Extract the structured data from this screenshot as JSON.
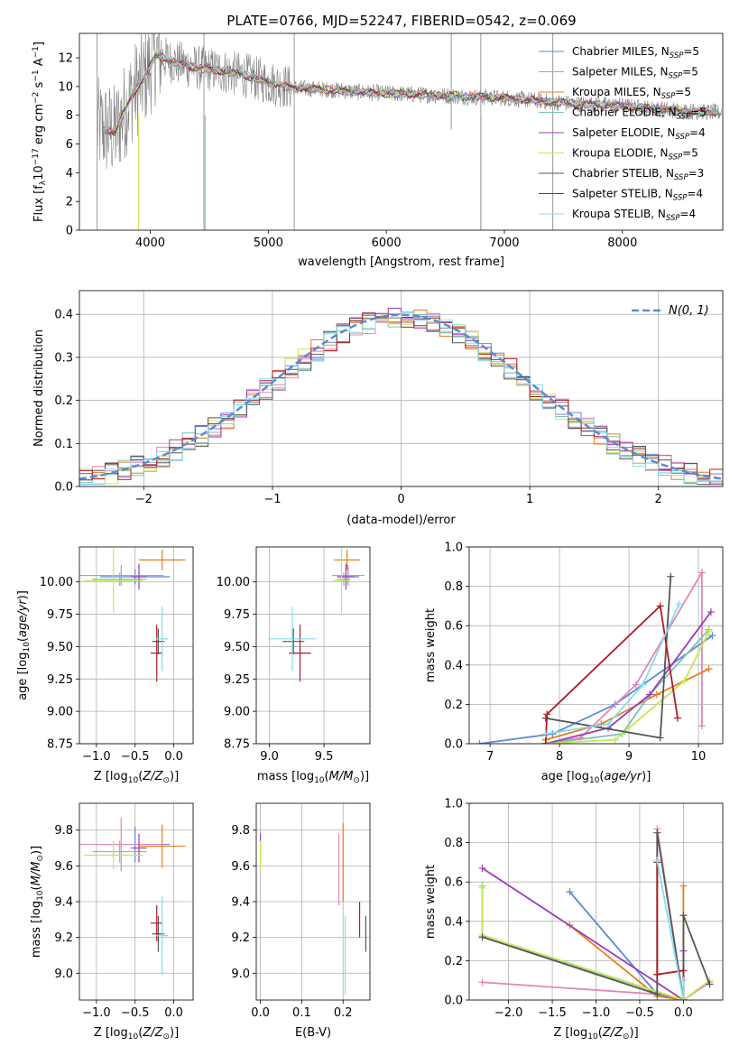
{
  "figure": {
    "title": "PLATE=0766, MJD=52247, FIBERID=0542, z=0.069"
  },
  "colors": {
    "Chabrier MILES": "#5b8ad6",
    "Salpeter MILES": "#e087b7",
    "Kroupa MILES": "#e87c1e",
    "Chabrier ELODIE": "#7dc2b6",
    "Salpeter ELODIE": "#9b3cb7",
    "Kroupa ELODIE": "#c7e553",
    "Chabrier STELIB": "#555555",
    "Salpeter STELIB": "#b01c22",
    "Kroupa STELIB": "#86dcec",
    "data": "#808080",
    "normal": "#5b8ad6"
  },
  "chart_data": [
    {
      "id": "spectrum",
      "type": "line",
      "xlabel": "wavelength [Angstrom, rest frame]",
      "ylabel": "Flux [f_λ10^-17 erg cm^-2 s^-1 A^-1]",
      "xlim": [
        3400,
        8850
      ],
      "ylim": [
        0,
        13.7
      ],
      "xticks": [
        4000,
        5000,
        6000,
        7000,
        8000
      ],
      "yticks": [
        0,
        2,
        4,
        6,
        8,
        10,
        12
      ],
      "continuum": {
        "x": [
          3550,
          3700,
          3850,
          3950,
          4050,
          4200,
          4400,
          4600,
          4800,
          5000,
          5200,
          5500,
          5800,
          6100,
          6400,
          6700,
          7000,
          7300,
          7600,
          7900,
          8200,
          8500,
          8800
        ],
        "y": [
          7.2,
          6.8,
          9.5,
          10.6,
          12.2,
          11.7,
          11.3,
          11.1,
          10.8,
          10.3,
          9.9,
          9.8,
          9.6,
          9.5,
          9.4,
          9.3,
          9.2,
          9.0,
          8.8,
          8.7,
          8.5,
          8.3,
          8.2
        ]
      },
      "legend": [
        "Chabrier MILES, N_SSP=5",
        "Salpeter MILES, N_SSP=5",
        "Kroupa MILES, N_SSP=5",
        "Chabrier ELODIE, N_SSP=5",
        "Salpeter ELODIE, N_SSP=4",
        "Kroupa ELODIE, N_SSP=5",
        "Chabrier STELIB, N_SSP=3",
        "Salpeter STELIB, N_SSP=4",
        "Kroupa STELIB, N_SSP=4"
      ],
      "legend_parts": [
        [
          "Chabrier MILES, N",
          "SSP",
          "=5"
        ],
        [
          "Salpeter MILES, N",
          "SSP",
          "=5"
        ],
        [
          "Kroupa MILES, N",
          "SSP",
          "=5"
        ],
        [
          "Chabrier ELODIE, N",
          "SSP",
          "=5"
        ],
        [
          "Salpeter ELODIE, N",
          "SSP",
          "=4"
        ],
        [
          "Kroupa ELODIE, N",
          "SSP",
          "=5"
        ],
        [
          "Chabrier STELIB, N",
          "SSP",
          "=3"
        ],
        [
          "Salpeter STELIB, N",
          "SSP",
          "=4"
        ],
        [
          "Kroupa STELIB, N",
          "SSP",
          "=4"
        ]
      ],
      "legend_placement": "upper right"
    },
    {
      "id": "residuals",
      "type": "histogram",
      "xlabel": "(data-model)/error",
      "ylabel": "Normed distribution",
      "xlim": [
        -2.5,
        2.5
      ],
      "ylim": [
        0,
        0.455
      ],
      "xticks": [
        -2,
        -1,
        0,
        1,
        2
      ],
      "yticks": [
        0.0,
        0.1,
        0.2,
        0.3,
        0.4
      ],
      "bin_width": 0.1,
      "reference": {
        "label": "N(0, 1)",
        "mean": 0,
        "sigma": 1
      },
      "grid": true
    },
    {
      "id": "age_vs_Z",
      "type": "errorbar",
      "xlabel": "Z [log10(Z/Z_sun)]",
      "ylabel": "age [log10(age/yr)]",
      "xlim": [
        -1.22,
        0.25
      ],
      "ylim": [
        8.75,
        10.27
      ],
      "xticks": [
        -1.0,
        -0.5,
        0.0
      ],
      "yticks": [
        8.75,
        9.0,
        9.25,
        9.5,
        9.75,
        10.0
      ],
      "points": [
        {
          "model": "Chabrier MILES",
          "x": -0.5,
          "xerr": 0.45,
          "y": 10.04,
          "yerr": 0.06
        },
        {
          "model": "Salpeter MILES",
          "x": -0.68,
          "xerr": 0.55,
          "y": 10.05,
          "yerr": 0.08
        },
        {
          "model": "Kroupa MILES",
          "x": -0.15,
          "xerr": 0.3,
          "y": 10.17,
          "yerr": 0.08
        },
        {
          "model": "Chabrier ELODIE",
          "x": -0.7,
          "xerr": 0.35,
          "y": 10.02,
          "yerr": 0.05
        },
        {
          "model": "Salpeter ELODIE",
          "x": -0.45,
          "xerr": 0.1,
          "y": 10.04,
          "yerr": 0.1
        },
        {
          "model": "Kroupa ELODIE",
          "x": -0.78,
          "xerr": 0.38,
          "y": 10.01,
          "yerr": 0.25
        },
        {
          "model": "Chabrier STELIB",
          "x": -0.2,
          "xerr": 0.08,
          "y": 9.54,
          "yerr": 0.1
        },
        {
          "model": "Salpeter STELIB",
          "x": -0.22,
          "xerr": 0.08,
          "y": 9.45,
          "yerr": 0.22
        },
        {
          "model": "Kroupa STELIB",
          "x": -0.15,
          "xerr": 0.08,
          "y": 9.56,
          "yerr": 0.25
        }
      ]
    },
    {
      "id": "age_vs_mass",
      "type": "errorbar",
      "xlabel": "mass [log10(M/M_sun)]",
      "ylabel": "",
      "xlim": [
        8.88,
        9.92
      ],
      "ylim": [
        8.75,
        10.27
      ],
      "xticks": [
        9.0,
        9.5
      ],
      "yticks": [
        8.75,
        9.0,
        9.25,
        9.5,
        9.75,
        10.0
      ],
      "points": [
        {
          "model": "Chabrier MILES",
          "x": 9.72,
          "xerr": 0.1,
          "y": 10.04,
          "yerr": 0.06
        },
        {
          "model": "Salpeter MILES",
          "x": 9.72,
          "xerr": 0.15,
          "y": 10.05,
          "yerr": 0.08
        },
        {
          "model": "Kroupa MILES",
          "x": 9.71,
          "xerr": 0.12,
          "y": 10.17,
          "yerr": 0.08
        },
        {
          "model": "Chabrier ELODIE",
          "x": 9.68,
          "xerr": 0.06,
          "y": 10.02,
          "yerr": 0.05
        },
        {
          "model": "Salpeter ELODIE",
          "x": 9.7,
          "xerr": 0.08,
          "y": 10.04,
          "yerr": 0.1
        },
        {
          "model": "Kroupa ELODIE",
          "x": 9.66,
          "xerr": 0.08,
          "y": 10.01,
          "yerr": 0.25
        },
        {
          "model": "Chabrier STELIB",
          "x": 9.22,
          "xerr": 0.1,
          "y": 9.54,
          "yerr": 0.1
        },
        {
          "model": "Salpeter STELIB",
          "x": 9.28,
          "xerr": 0.1,
          "y": 9.45,
          "yerr": 0.22
        },
        {
          "model": "Kroupa STELIB",
          "x": 9.21,
          "xerr": 0.22,
          "y": 9.56,
          "yerr": 0.25
        }
      ]
    },
    {
      "id": "weight_vs_age",
      "type": "line",
      "xlabel": "age [log10(age/yr)]",
      "ylabel": "mass weight",
      "xlim": [
        6.7,
        10.35
      ],
      "ylim": [
        0,
        1.0
      ],
      "xticks": [
        7,
        8,
        9,
        10
      ],
      "yticks": [
        0.0,
        0.2,
        0.4,
        0.6,
        0.8,
        1.0
      ],
      "grid": true,
      "series": [
        {
          "model": "Chabrier MILES",
          "points": [
            [
              6.85,
              0.0
            ],
            [
              7.9,
              0.05
            ],
            [
              8.8,
              0.2
            ],
            [
              10.2,
              0.55
            ]
          ]
        },
        {
          "model": "Salpeter MILES",
          "points": [
            [
              7.8,
              0.0
            ],
            [
              8.3,
              0.03
            ],
            [
              9.1,
              0.3
            ],
            [
              10.05,
              0.87
            ],
            [
              10.05,
              0.09
            ]
          ]
        },
        {
          "model": "Kroupa MILES",
          "points": [
            [
              7.8,
              0.02
            ],
            [
              8.6,
              0.1
            ],
            [
              9.4,
              0.25
            ],
            [
              10.15,
              0.38
            ]
          ]
        },
        {
          "model": "Chabrier ELODIE",
          "points": [
            [
              7.8,
              0.0
            ],
            [
              8.9,
              0.05
            ],
            [
              9.3,
              0.25
            ],
            [
              10.15,
              0.58
            ]
          ]
        },
        {
          "model": "Salpeter ELODIE",
          "points": [
            [
              7.8,
              0.0
            ],
            [
              8.7,
              0.08
            ],
            [
              9.3,
              0.25
            ],
            [
              10.18,
              0.67
            ]
          ]
        },
        {
          "model": "Kroupa ELODIE",
          "points": [
            [
              7.8,
              0.0
            ],
            [
              8.8,
              0.02
            ],
            [
              9.8,
              0.32
            ],
            [
              10.15,
              0.57
            ]
          ]
        },
        {
          "model": "Chabrier STELIB",
          "points": [
            [
              7.8,
              0.13
            ],
            [
              9.45,
              0.03
            ],
            [
              9.6,
              0.85
            ]
          ]
        },
        {
          "model": "Salpeter STELIB",
          "points": [
            [
              7.8,
              0.0
            ],
            [
              7.82,
              0.15
            ],
            [
              9.45,
              0.7
            ],
            [
              9.7,
              0.13
            ]
          ]
        },
        {
          "model": "Kroupa STELIB",
          "points": [
            [
              7.8,
              0.05
            ],
            [
              8.7,
              0.1
            ],
            [
              9.2,
              0.3
            ],
            [
              9.72,
              0.71
            ]
          ]
        }
      ]
    },
    {
      "id": "mass_vs_Z",
      "type": "errorbar",
      "xlabel": "Z [log10(Z/Z_sun)]",
      "ylabel": "mass [log10(M/M_sun)]",
      "xlim": [
        -1.22,
        0.25
      ],
      "ylim": [
        8.85,
        9.95
      ],
      "xticks": [
        -1.0,
        -0.5,
        0.0
      ],
      "yticks": [
        9.0,
        9.2,
        9.4,
        9.6,
        9.8
      ],
      "points": [
        {
          "model": "Chabrier MILES",
          "x": -0.5,
          "xerr": 0.45,
          "y": 9.72,
          "yerr": 0.1
        },
        {
          "model": "Salpeter MILES",
          "x": -0.68,
          "xerr": 0.55,
          "y": 9.72,
          "yerr": 0.15
        },
        {
          "model": "Kroupa MILES",
          "x": -0.15,
          "xerr": 0.3,
          "y": 9.71,
          "yerr": 0.12
        },
        {
          "model": "Chabrier ELODIE",
          "x": -0.7,
          "xerr": 0.35,
          "y": 9.68,
          "yerr": 0.06
        },
        {
          "model": "Salpeter ELODIE",
          "x": -0.45,
          "xerr": 0.1,
          "y": 9.7,
          "yerr": 0.08
        },
        {
          "model": "Kroupa ELODIE",
          "x": -0.78,
          "xerr": 0.38,
          "y": 9.66,
          "yerr": 0.08
        },
        {
          "model": "Chabrier STELIB",
          "x": -0.2,
          "xerr": 0.08,
          "y": 9.22,
          "yerr": 0.1
        },
        {
          "model": "Salpeter STELIB",
          "x": -0.22,
          "xerr": 0.08,
          "y": 9.28,
          "yerr": 0.1
        },
        {
          "model": "Kroupa STELIB",
          "x": -0.15,
          "xerr": 0.08,
          "y": 9.21,
          "yerr": 0.22
        }
      ]
    },
    {
      "id": "mass_vs_ebv",
      "type": "errorbar",
      "xlabel": "E(B-V)",
      "ylabel": "",
      "xlim": [
        -0.01,
        0.265
      ],
      "ylim": [
        8.85,
        9.95
      ],
      "xticks": [
        0.0,
        0.1,
        0.2
      ],
      "yticks": [
        9.0,
        9.2,
        9.4,
        9.6,
        9.8
      ],
      "points": [
        {
          "model": "Salpeter ELODIE",
          "x": 0.0,
          "y": 9.7,
          "yerr": 0.08
        },
        {
          "model": "Kroupa ELODIE",
          "x": 0.0,
          "y": 9.66,
          "yerr": 0.08
        },
        {
          "model": "Salpeter MILES",
          "x": 0.19,
          "y": 9.58,
          "yerr": 0.2
        },
        {
          "model": "Kroupa MILES",
          "x": 0.2,
          "y": 9.62,
          "yerr": 0.22
        },
        {
          "model": "Kroupa STELIB",
          "x": 0.205,
          "y": 9.1,
          "yerr": 0.22
        },
        {
          "model": "Salpeter STELIB",
          "x": 0.24,
          "y": 9.3,
          "yerr": 0.1
        },
        {
          "model": "Chabrier STELIB",
          "x": 0.255,
          "y": 9.22,
          "yerr": 0.1
        }
      ]
    },
    {
      "id": "weight_vs_Z",
      "type": "line",
      "xlabel": "Z [log10(Z/Z_sun)]",
      "ylabel": "mass weight",
      "xlim": [
        -2.45,
        0.45
      ],
      "ylim": [
        0,
        1.0
      ],
      "xticks": [
        -2.0,
        -1.5,
        -1.0,
        -0.5,
        0.0
      ],
      "yticks": [
        0.0,
        0.2,
        0.4,
        0.6,
        0.8,
        1.0
      ],
      "grid": true,
      "series": [
        {
          "model": "Chabrier MILES",
          "points": [
            [
              -1.3,
              0.55
            ],
            [
              -0.3,
              0.03
            ],
            [
              0.0,
              0.0
            ]
          ]
        },
        {
          "model": "Salpeter MILES",
          "points": [
            [
              -2.3,
              0.09
            ],
            [
              -0.3,
              0.03
            ],
            [
              -0.3,
              0.87
            ],
            [
              0.0,
              0.0
            ],
            [
              0.3,
              0.09
            ]
          ]
        },
        {
          "model": "Kroupa MILES",
          "points": [
            [
              -1.3,
              0.38
            ],
            [
              -0.3,
              0.02
            ],
            [
              0.0,
              0.0
            ],
            [
              0.0,
              0.58
            ]
          ]
        },
        {
          "model": "Chabrier ELODIE",
          "points": [
            [
              -2.3,
              0.58
            ],
            [
              -2.3,
              0.32
            ],
            [
              0.0,
              0.0
            ],
            [
              0.0,
              0.2
            ]
          ]
        },
        {
          "model": "Salpeter ELODIE",
          "points": [
            [
              -2.3,
              0.67
            ],
            [
              0.0,
              0.0
            ],
            [
              0.0,
              0.25
            ]
          ]
        },
        {
          "model": "Kroupa ELODIE",
          "points": [
            [
              -2.3,
              0.57
            ],
            [
              -2.3,
              0.33
            ],
            [
              0.0,
              0.0
            ],
            [
              0.3,
              0.1
            ]
          ]
        },
        {
          "model": "Chabrier STELIB",
          "points": [
            [
              -2.3,
              0.32
            ],
            [
              -0.3,
              0.03
            ],
            [
              -0.3,
              0.85
            ],
            [
              0.0,
              0.0
            ],
            [
              0.0,
              0.43
            ],
            [
              0.3,
              0.08
            ]
          ]
        },
        {
          "model": "Salpeter STELIB",
          "points": [
            [
              -0.3,
              0.13
            ],
            [
              -0.3,
              0.7
            ],
            [
              -0.3,
              0.13
            ],
            [
              0.0,
              0.15
            ],
            [
              0.0,
              0.0
            ]
          ]
        },
        {
          "model": "Kroupa STELIB",
          "points": [
            [
              -0.3,
              0.71
            ],
            [
              0.0,
              0.0
            ],
            [
              0.0,
              0.1
            ]
          ]
        }
      ]
    }
  ]
}
